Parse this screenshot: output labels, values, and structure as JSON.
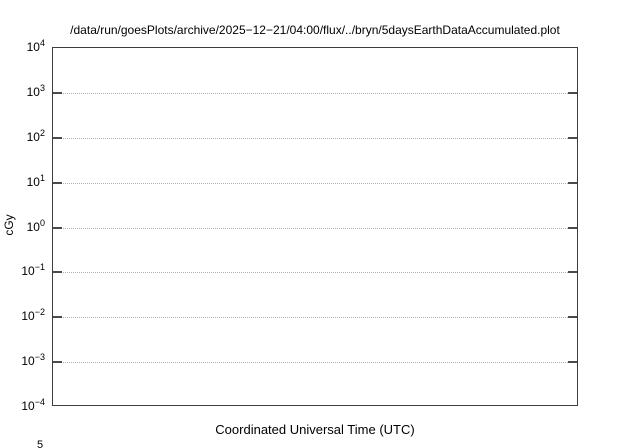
{
  "chart_data": {
    "type": "line",
    "title": "/data/run/goesPlots/archive/2025−12−21/04:00/flux/../bryn/5daysEarthDataAccumulated.plot",
    "xlabel": "Coordinated Universal Time (UTC)",
    "ylabel": "cGy",
    "yscale": "log",
    "ylim_exponents": [
      -4,
      4
    ],
    "ytick_exponents": [
      4,
      3,
      2,
      1,
      0,
      -1,
      -2,
      -3,
      -4
    ],
    "xtick_labels": [],
    "series": [],
    "grid": "dotted horizontal gridline at each decade, tick marks on left and right axis edges"
  },
  "clipped_partial_label": "5",
  "colors": {
    "background": "#ffffff",
    "box_border": "#3d3d3d",
    "tick_mark": "#4a4a4a",
    "gridline": "#b0b0b0",
    "text": "#000000"
  }
}
